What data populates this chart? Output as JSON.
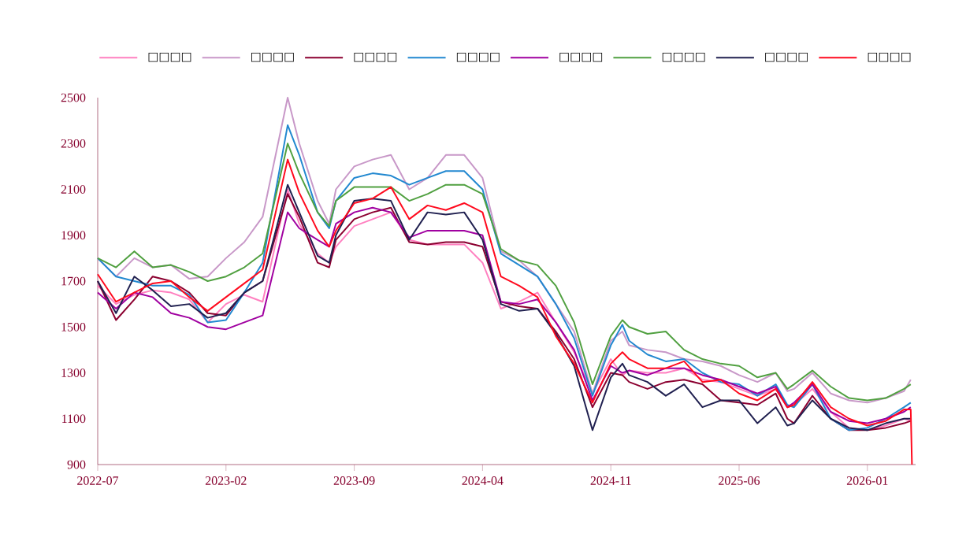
{
  "chart_data": {
    "type": "line",
    "legend": "top",
    "x": [
      "2022-07",
      "2022-08",
      "2022-09",
      "2022-10",
      "2022-11",
      "2022-12",
      "2023-01",
      "2023-02",
      "2023-03",
      "2023-04",
      "2023-05-12",
      "2023-06",
      "2023-07",
      "2023-07-20",
      "2023-08",
      "2023-09",
      "2023-10",
      "2023-11",
      "2023-12",
      "2024-01",
      "2024-02",
      "2024-03",
      "2024-04",
      "2024-05",
      "2024-06",
      "2024-07",
      "2024-08",
      "2024-09",
      "2024-10",
      "2024-11",
      "2024-11-20",
      "2024-12",
      "2025-01",
      "2025-02",
      "2025-03",
      "2025-04",
      "2025-05",
      "2025-06",
      "2025-07",
      "2025-08",
      "2025-08-20",
      "2025-09",
      "2025-10",
      "2025-11",
      "2025-12",
      "2026-01",
      "2026-02",
      "2026-03",
      "2026-03-12"
    ],
    "xlim": [
      "2022-07",
      "2026-03-20"
    ],
    "xticks": [
      "2022-07",
      "2023-02",
      "2023-09",
      "2024-04",
      "2024-11",
      "2025-06",
      "2026-01"
    ],
    "ylim": [
      900,
      2500
    ],
    "yticks": [
      900,
      1100,
      1300,
      1500,
      1700,
      1900,
      2100,
      2300,
      2500
    ],
    "series": [
      {
        "name": "□□□□",
        "color": "#ff80c0",
        "values": [
          1680,
          1600,
          1640,
          1660,
          1650,
          1620,
          1520,
          1600,
          1640,
          1610,
          2100,
          1950,
          1820,
          1780,
          1850,
          1940,
          1970,
          2000,
          1880,
          1860,
          1860,
          1860,
          1780,
          1580,
          1610,
          1650,
          1520,
          1390,
          1210,
          1360,
          1290,
          1310,
          1300,
          1300,
          1320,
          1270,
          1260,
          1230,
          1200,
          1230,
          1150,
          1160,
          1230,
          1130,
          1060,
          1050,
          1070,
          1100,
          1090
        ]
      },
      {
        "name": "□□□□",
        "color": "#c898c8",
        "values": [
          1800,
          1720,
          1800,
          1760,
          1770,
          1710,
          1720,
          1800,
          1870,
          1980,
          2500,
          2300,
          2050,
          1950,
          2100,
          2200,
          2230,
          2250,
          2100,
          2150,
          2250,
          2250,
          2150,
          1830,
          1790,
          1720,
          1600,
          1480,
          1210,
          1440,
          1480,
          1420,
          1400,
          1390,
          1360,
          1350,
          1330,
          1290,
          1260,
          1300,
          1220,
          1230,
          1300,
          1210,
          1180,
          1170,
          1190,
          1220,
          1270
        ]
      },
      {
        "name": "□□□□",
        "color": "#8b0030",
        "values": [
          1700,
          1530,
          1620,
          1720,
          1700,
          1650,
          1560,
          1550,
          1650,
          1700,
          2080,
          1980,
          1780,
          1760,
          1880,
          1970,
          2000,
          2020,
          1870,
          1860,
          1870,
          1870,
          1850,
          1610,
          1590,
          1580,
          1480,
          1360,
          1150,
          1300,
          1290,
          1260,
          1230,
          1260,
          1270,
          1250,
          1180,
          1170,
          1160,
          1210,
          1100,
          1080,
          1200,
          1100,
          1050,
          1050,
          1060,
          1080,
          1090
        ]
      },
      {
        "name": "□□□□",
        "color": "#2288d0",
        "values": [
          1800,
          1720,
          1700,
          1680,
          1680,
          1640,
          1520,
          1530,
          1650,
          1780,
          2380,
          2250,
          2000,
          1930,
          2050,
          2150,
          2170,
          2160,
          2120,
          2150,
          2180,
          2180,
          2100,
          1820,
          1770,
          1720,
          1600,
          1450,
          1200,
          1420,
          1510,
          1440,
          1380,
          1350,
          1360,
          1300,
          1260,
          1250,
          1200,
          1250,
          1160,
          1150,
          1250,
          1100,
          1050,
          1060,
          1100,
          1150,
          1170
        ]
      },
      {
        "name": "□□□□",
        "color": "#a000a0",
        "values": [
          1650,
          1580,
          1650,
          1630,
          1560,
          1540,
          1500,
          1490,
          1520,
          1550,
          2000,
          1930,
          1880,
          1850,
          1950,
          2000,
          2020,
          2000,
          1890,
          1920,
          1920,
          1920,
          1900,
          1610,
          1600,
          1620,
          1520,
          1400,
          1180,
          1330,
          1300,
          1310,
          1290,
          1320,
          1320,
          1290,
          1270,
          1240,
          1210,
          1240,
          1150,
          1170,
          1250,
          1130,
          1090,
          1080,
          1100,
          1130,
          1150
        ]
      },
      {
        "name": "□□□□",
        "color": "#50a040",
        "values": [
          1800,
          1760,
          1830,
          1760,
          1770,
          1740,
          1700,
          1720,
          1760,
          1820,
          2300,
          2170,
          2000,
          1940,
          2050,
          2110,
          2110,
          2110,
          2050,
          2080,
          2120,
          2120,
          2080,
          1840,
          1790,
          1770,
          1680,
          1520,
          1250,
          1460,
          1530,
          1500,
          1470,
          1480,
          1400,
          1360,
          1340,
          1330,
          1280,
          1300,
          1230,
          1250,
          1310,
          1240,
          1190,
          1180,
          1190,
          1230,
          1250
        ]
      },
      {
        "name": "□□□□",
        "color": "#202050",
        "values": [
          1700,
          1560,
          1720,
          1660,
          1590,
          1600,
          1540,
          1560,
          1650,
          1700,
          2120,
          2000,
          1810,
          1780,
          1900,
          2050,
          2060,
          2050,
          1880,
          2000,
          1990,
          2000,
          1880,
          1600,
          1570,
          1580,
          1470,
          1330,
          1050,
          1280,
          1340,
          1290,
          1260,
          1200,
          1250,
          1150,
          1180,
          1180,
          1080,
          1150,
          1070,
          1080,
          1180,
          1100,
          1060,
          1050,
          1080,
          1100,
          1100
        ]
      },
      {
        "name": "□□□□",
        "color": "#ff0a1e",
        "x": [
          "2022-07",
          "2022-08",
          "2022-09",
          "2022-10",
          "2022-11",
          "2022-12",
          "2023-01",
          "2023-02",
          "2023-03",
          "2023-04",
          "2023-05-12",
          "2023-06",
          "2023-07",
          "2023-07-20",
          "2023-08",
          "2023-09",
          "2023-10",
          "2023-11",
          "2023-12",
          "2024-01",
          "2024-02",
          "2024-03",
          "2024-04",
          "2024-05",
          "2024-06",
          "2024-07",
          "2024-08",
          "2024-09",
          "2024-10",
          "2024-11",
          "2024-11-20",
          "2024-12",
          "2025-01",
          "2025-02",
          "2025-03",
          "2025-04",
          "2025-05",
          "2025-06",
          "2025-07",
          "2025-08",
          "2025-08-20",
          "2025-09",
          "2025-10",
          "2025-11",
          "2025-12",
          "2026-01",
          "2026-02",
          "2026-03",
          "2026-03-12",
          "2026-03-14"
        ],
        "values": [
          1730,
          1610,
          1650,
          1690,
          1700,
          1630,
          1570,
          1630,
          1690,
          1750,
          2230,
          2085,
          1920,
          1850,
          1920,
          2040,
          2060,
          2110,
          1970,
          2030,
          2010,
          2040,
          2000,
          1720,
          1680,
          1630,
          1460,
          1340,
          1170,
          1340,
          1390,
          1360,
          1320,
          1320,
          1350,
          1260,
          1270,
          1210,
          1180,
          1230,
          1150,
          1160,
          1260,
          1150,
          1100,
          1070,
          1090,
          1140,
          1140,
          900
        ]
      }
    ]
  }
}
